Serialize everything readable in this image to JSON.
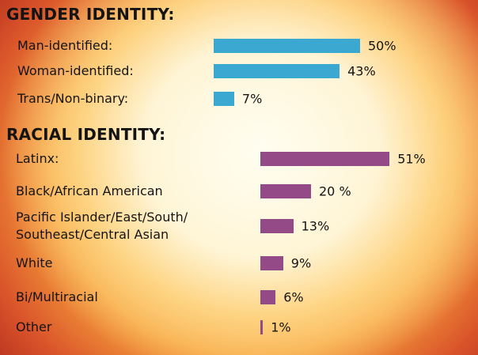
{
  "chart_data": [
    {
      "type": "bar",
      "orientation": "horizontal",
      "title": "GENDER IDENTITY:",
      "categories": [
        "Man-identified:",
        "Woman-identified:",
        "Trans/Non-binary:"
      ],
      "values": [
        50,
        43,
        7
      ],
      "value_labels": [
        "50%",
        "43%",
        "7%"
      ],
      "color": "#3aa8d0"
    },
    {
      "type": "bar",
      "orientation": "horizontal",
      "title": "RACIAL IDENTITY:",
      "categories": [
        "Latinx:",
        "Black/African American",
        "Pacific Islander/East/South/\nSoutheast/Central Asian",
        "White",
        "Bi/Multiracial",
        "Other"
      ],
      "values": [
        51,
        20,
        13,
        9,
        6,
        1
      ],
      "value_labels": [
        "51%",
        "20 %",
        "13%",
        "9%",
        "6%",
        "1%"
      ],
      "color": "#934a86"
    }
  ]
}
